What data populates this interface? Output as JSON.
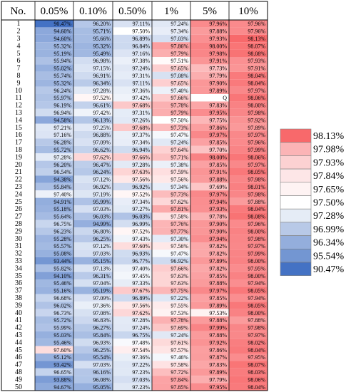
{
  "chart_data": {
    "type": "heatmap",
    "columns": [
      "No.",
      "0.05%",
      "0.10%",
      "0.50%",
      "1%",
      "5%",
      "10%"
    ],
    "rows": [
      {
        "no": "1",
        "values": [
          "90.47%",
          "96.20%",
          "97.11%",
          "97.24%",
          "97.96%",
          "97.96%"
        ]
      },
      {
        "no": "2",
        "values": [
          "94.60%",
          "95.71%",
          "97.50%",
          "97.34%",
          "97.88%",
          "97.96%"
        ]
      },
      {
        "no": "3",
        "values": [
          "94.60%",
          "95.66%",
          "96.89%",
          "97.03%",
          "97.93%",
          "98.13%"
        ]
      },
      {
        "no": "4",
        "values": [
          "95.32%",
          "95.32%",
          "96.84%",
          "97.86%",
          "98.00%",
          "98.07%"
        ]
      },
      {
        "no": "5",
        "values": [
          "95.19%",
          "95.49%",
          "97.16%",
          "97.79%",
          "97.98%",
          "98.08%"
        ]
      },
      {
        "no": "6",
        "values": [
          "95.94%",
          "96.98%",
          "97.38%",
          "97.51%",
          "97.91%",
          "97.93%"
        ]
      },
      {
        "no": "7",
        "values": [
          "95.02%",
          "97.15%",
          "97.24%",
          "97.65%",
          "97.73%",
          "97.91%"
        ]
      },
      {
        "no": "8",
        "values": [
          "95.74%",
          "96.91%",
          "97.31%",
          "97.08%",
          "97.79%",
          "98.04%"
        ]
      },
      {
        "no": "9",
        "values": [
          "95.32%",
          "96.34%",
          "97.11%",
          "97.65%",
          "97.90%",
          "98.04%"
        ]
      },
      {
        "no": "10",
        "values": [
          "96.24%",
          "97.28%",
          "97.36%",
          "97.40%",
          "97.89%",
          "97.97%"
        ]
      },
      {
        "no": "11",
        "values": [
          "95.97%",
          "97.52%",
          "97.42%",
          "97.66%",
          "Q",
          "98.06%"
        ]
      },
      {
        "no": "12",
        "values": [
          "96.19%",
          "96.61%",
          "97.68%",
          "97.78%",
          "97.83%",
          "98.00%"
        ]
      },
      {
        "no": "13",
        "values": [
          "96.94%",
          "97.42%",
          "97.31%",
          "97.79%",
          "97.95%",
          "97.98%"
        ]
      },
      {
        "no": "14",
        "values": [
          "94.58%",
          "96.13%",
          "97.26%",
          "97.50%",
          "97.75%",
          "97.92%"
        ]
      },
      {
        "no": "15",
        "values": [
          "97.21%",
          "97.25%",
          "97.68%",
          "97.73%",
          "97.86%",
          "97.89%"
        ]
      },
      {
        "no": "16",
        "values": [
          "97.16%",
          "96.88%",
          "97.37%",
          "97.47%",
          "97.97%",
          "97.97%"
        ]
      },
      {
        "no": "17",
        "values": [
          "96.28%",
          "97.09%",
          "97.34%",
          "97.24%",
          "97.85%",
          "97.96%"
        ]
      },
      {
        "no": "18",
        "values": [
          "95.72%",
          "96.62%",
          "96.94%",
          "97.64%",
          "97.70%",
          "97.99%"
        ]
      },
      {
        "no": "19",
        "values": [
          "97.28%",
          "97.62%",
          "97.66%",
          "97.71%",
          "98.00%",
          "98.06%"
        ]
      },
      {
        "no": "20",
        "values": [
          "96.20%",
          "96.47%",
          "97.28%",
          "97.38%",
          "97.85%",
          "97.97%"
        ]
      },
      {
        "no": "21",
        "values": [
          "96.54%",
          "96.24%",
          "97.63%",
          "97.59%",
          "97.91%",
          "98.05%"
        ]
      },
      {
        "no": "22",
        "values": [
          "94.38%",
          "97.12%",
          "97.56%",
          "97.56%",
          "97.88%",
          "97.98%"
        ]
      },
      {
        "no": "23",
        "values": [
          "95.84%",
          "96.92%",
          "96.92%",
          "97.34%",
          "97.69%",
          "98.01%"
        ]
      },
      {
        "no": "24",
        "values": [
          "97.40%",
          "97.19%",
          "97.52%",
          "97.73%",
          "97.97%",
          "97.98%"
        ]
      },
      {
        "no": "25",
        "values": [
          "94.91%",
          "95.99%",
          "97.34%",
          "97.62%",
          "97.94%",
          "97.88%"
        ]
      },
      {
        "no": "26",
        "values": [
          "95.18%",
          "97.03%",
          "97.27%",
          "97.81%",
          "97.93%",
          "98.04%"
        ]
      },
      {
        "no": "27",
        "values": [
          "95.64%",
          "96.03%",
          "96.03%",
          "97.58%",
          "97.78%",
          "98.08%"
        ]
      },
      {
        "no": "28",
        "values": [
          "96.75%",
          "94.99%",
          "96.99%",
          "97.76%",
          "97.90%",
          "97.96%"
        ]
      },
      {
        "no": "29",
        "values": [
          "96.23%",
          "96.80%",
          "97.52%",
          "97.77%",
          "97.90%",
          "98.00%"
        ]
      },
      {
        "no": "30",
        "values": [
          "95.28%",
          "96.25%",
          "97.43%",
          "97.30%",
          "97.94%",
          "97.98%"
        ]
      },
      {
        "no": "31",
        "values": [
          "95.57%",
          "97.12%",
          "97.60%",
          "97.56%",
          "97.82%",
          "97.97%"
        ]
      },
      {
        "no": "32",
        "values": [
          "95.08%",
          "97.03%",
          "96.93%",
          "97.47%",
          "97.82%",
          "97.99%"
        ]
      },
      {
        "no": "33",
        "values": [
          "93.44%",
          "95.15%",
          "96.77%",
          "96.92%",
          "97.89%",
          "98.00%"
        ]
      },
      {
        "no": "34",
        "values": [
          "95.82%",
          "97.13%",
          "97.40%",
          "97.66%",
          "97.82%",
          "97.95%"
        ]
      },
      {
        "no": "35",
        "values": [
          "94.10%",
          "96.31%",
          "97.45%",
          "97.63%",
          "97.85%",
          "98.00%"
        ]
      },
      {
        "no": "36",
        "values": [
          "95.46%",
          "97.04%",
          "97.33%",
          "97.63%",
          "97.88%",
          "97.94%"
        ]
      },
      {
        "no": "37",
        "values": [
          "95.16%",
          "95.19%",
          "97.67%",
          "97.75%",
          "97.97%",
          "98.05%"
        ]
      },
      {
        "no": "38",
        "values": [
          "96.68%",
          "97.09%",
          "96.89%",
          "97.22%",
          "97.85%",
          "97.94%"
        ]
      },
      {
        "no": "39",
        "values": [
          "96.02%",
          "97.36%",
          "97.56%",
          "97.55%",
          "97.89%",
          "98.05%"
        ]
      },
      {
        "no": "40",
        "values": [
          "96.73%",
          "97.08%",
          "97.62%",
          "97.53%",
          "97.53%",
          "98.00%"
        ]
      },
      {
        "no": "41",
        "values": [
          "95.72%",
          "96.83%",
          "97.28%",
          "97.78%",
          "97.88%",
          "97.88%"
        ]
      },
      {
        "no": "42",
        "values": [
          "95.99%",
          "96.27%",
          "97.24%",
          "97.69%",
          "97.99%",
          "97.98%"
        ]
      },
      {
        "no": "43",
        "values": [
          "95.03%",
          "95.84%",
          "96.75%",
          "97.24%",
          "97.88%",
          "97.97%"
        ]
      },
      {
        "no": "44",
        "values": [
          "95.46%",
          "96.93%",
          "97.48%",
          "97.61%",
          "97.92%",
          "98.02%"
        ]
      },
      {
        "no": "45",
        "values": [
          "97.60%",
          "96.25%",
          "97.54%",
          "97.57%",
          "97.86%",
          "98.04%"
        ]
      },
      {
        "no": "46",
        "values": [
          "95.12%",
          "95.54%",
          "97.36%",
          "97.46%",
          "97.87%",
          "97.95%"
        ]
      },
      {
        "no": "47",
        "values": [
          "93.42%",
          "97.03%",
          "97.22%",
          "97.58%",
          "97.83%",
          "98.07%"
        ]
      },
      {
        "no": "48",
        "values": [
          "96.65%",
          "96.16%",
          "97.23%",
          "97.72%",
          "97.89%",
          "98.03%"
        ]
      },
      {
        "no": "49",
        "values": [
          "93.88%",
          "96.08%",
          "97.03%",
          "97.84%",
          "97.79%",
          "98.06%"
        ]
      },
      {
        "no": "50",
        "values": [
          "94.67%",
          "95.05%",
          "97.23%",
          "97.85%",
          "97.95%",
          "98.04%"
        ]
      }
    ],
    "color_scale": [
      "#4472c4",
      "#ffffff",
      "#f8696b"
    ],
    "legend": {
      "placement": "right",
      "entries": [
        "98.13%",
        "97.98%",
        "97.93%",
        "97.84%",
        "97.65%",
        "97.50%",
        "97.28%",
        "96.99%",
        "96.34%",
        "95.54%",
        "90.47%"
      ],
      "colors": [
        "#f8696b",
        "#fbb4b6",
        "#fcd1d2",
        "#fde6e7",
        "#fef3f3",
        "#ffffff",
        "#e5ecf6",
        "#b8c9e7",
        "#94aedc",
        "#7396d2",
        "#4472c4"
      ]
    }
  }
}
